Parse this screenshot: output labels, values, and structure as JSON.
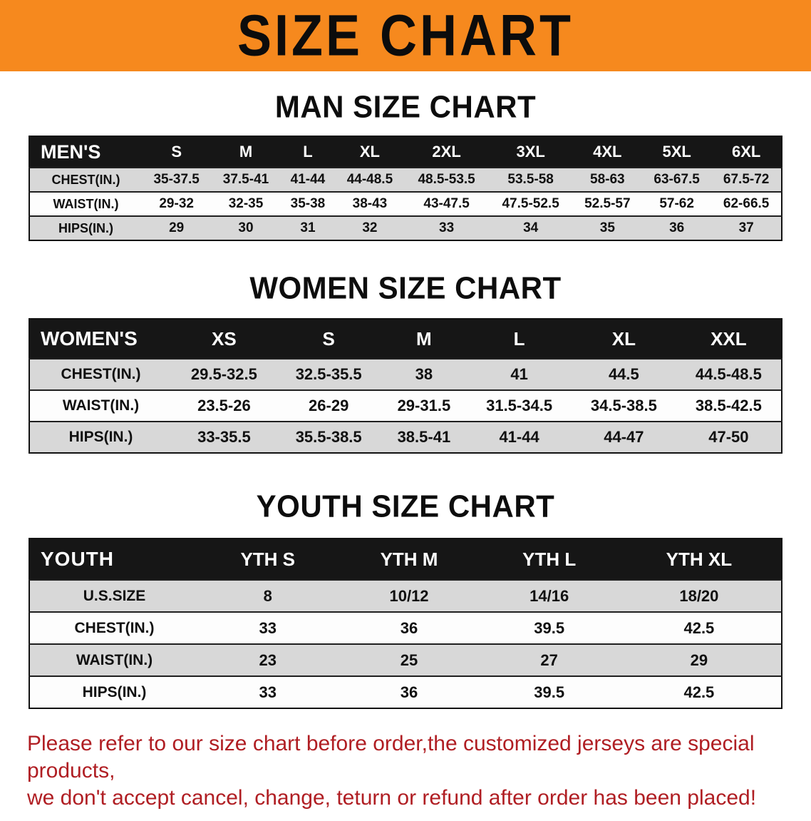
{
  "banner": {
    "title": "SIZE CHART"
  },
  "colors": {
    "banner_bg": "#f6891e",
    "header_bg": "#161616",
    "stripe": "#d8d8d8",
    "note_red": "#b01e23"
  },
  "men": {
    "heading": "MAN SIZE CHART",
    "header": [
      "MEN'S",
      "S",
      "M",
      "L",
      "XL",
      "2XL",
      "3XL",
      "4XL",
      "5XL",
      "6XL"
    ],
    "rows": [
      {
        "label": "CHEST(IN.)",
        "values": [
          "35-37.5",
          "37.5-41",
          "41-44",
          "44-48.5",
          "48.5-53.5",
          "53.5-58",
          "58-63",
          "63-67.5",
          "67.5-72"
        ]
      },
      {
        "label": "WAIST(IN.)",
        "values": [
          "29-32",
          "32-35",
          "35-38",
          "38-43",
          "43-47.5",
          "47.5-52.5",
          "52.5-57",
          "57-62",
          "62-66.5"
        ]
      },
      {
        "label": "HIPS(IN.)",
        "values": [
          "29",
          "30",
          "31",
          "32",
          "33",
          "34",
          "35",
          "36",
          "37"
        ]
      }
    ]
  },
  "women": {
    "heading": "WOMEN SIZE CHART",
    "header": [
      "WOMEN'S",
      "XS",
      "S",
      "M",
      "L",
      "XL",
      "XXL"
    ],
    "rows": [
      {
        "label": "CHEST(IN.)",
        "values": [
          "29.5-32.5",
          "32.5-35.5",
          "38",
          "41",
          "44.5",
          "44.5-48.5"
        ]
      },
      {
        "label": "WAIST(IN.)",
        "values": [
          "23.5-26",
          "26-29",
          "29-31.5",
          "31.5-34.5",
          "34.5-38.5",
          "38.5-42.5"
        ]
      },
      {
        "label": "HIPS(IN.)",
        "values": [
          "33-35.5",
          "35.5-38.5",
          "38.5-41",
          "41-44",
          "44-47",
          "47-50"
        ]
      }
    ]
  },
  "youth": {
    "heading": "YOUTH SIZE CHART",
    "header": [
      "YOUTH",
      "YTH S",
      "YTH M",
      "YTH L",
      "YTH XL"
    ],
    "rows": [
      {
        "label": "U.S.SIZE",
        "values": [
          "8",
          "10/12",
          "14/16",
          "18/20"
        ]
      },
      {
        "label": "CHEST(IN.)",
        "values": [
          "33",
          "36",
          "39.5",
          "42.5"
        ]
      },
      {
        "label": "WAIST(IN.)",
        "values": [
          "23",
          "25",
          "27",
          "29"
        ]
      },
      {
        "label": "HIPS(IN.)",
        "values": [
          "33",
          "36",
          "39.5",
          "42.5"
        ]
      }
    ]
  },
  "note": {
    "line1": "Please refer to our size chart before order,the customized jerseys are special products,",
    "line2": "we don't accept cancel, change, teturn or refund after order has been placed!"
  }
}
